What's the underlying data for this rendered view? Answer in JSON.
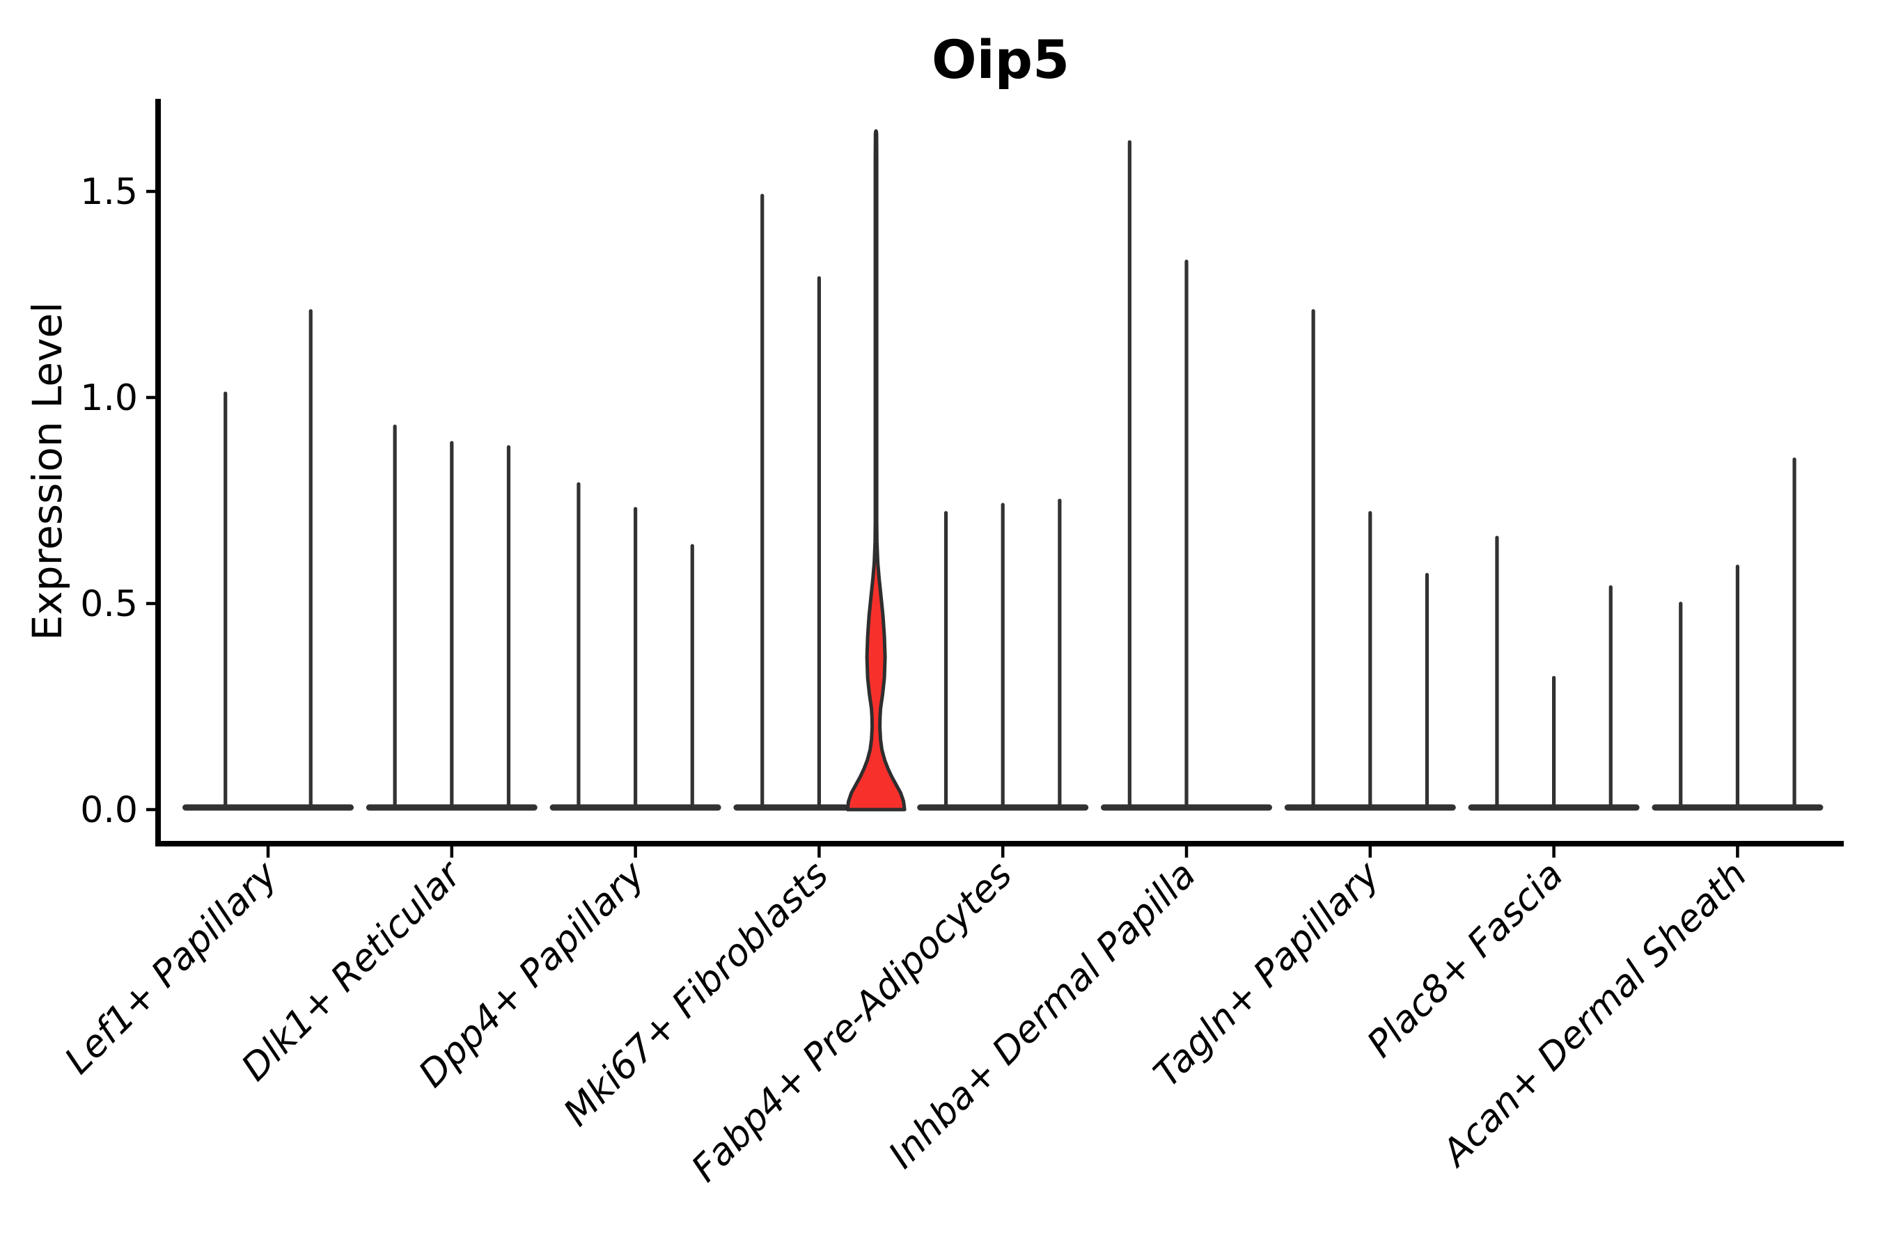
{
  "title": "Oip5",
  "ylabel": "Expression Level",
  "colors": {
    "background": "#ffffff",
    "axis": "#000000",
    "violin_line": "#323232",
    "highlight_fill": "#f8302c",
    "highlight_stroke": "#2e2e2e",
    "text": "#000000"
  },
  "chart_data": {
    "type": "violin",
    "title": "Oip5",
    "xlabel": "",
    "ylabel": "Expression Level",
    "ytick_labels": [
      "0.0",
      "0.5",
      "1.0",
      "1.5"
    ],
    "yticks": [
      0.0,
      0.5,
      1.0,
      1.5
    ],
    "ylim": [
      -0.085,
      1.725
    ],
    "grid": false,
    "legend": "none",
    "categories": [
      "Lef1+ Papillary",
      "Dlk1+ Reticular",
      "Dpp4+ Papillary",
      "Mki67+ Fibroblasts",
      "Fabp4+ Pre-Adipocytes",
      "Inhba+ Dermal Papilla",
      "Tagln+ Papillary",
      "Plac8+ Fascia",
      "Acan+ Dermal Sheath"
    ],
    "groups": [
      {
        "label": "Lef1+ Papillary",
        "violin_max_values": [
          1.01,
          1.21
        ]
      },
      {
        "label": "Dlk1+ Reticular",
        "violin_max_values": [
          0.93,
          0.89,
          0.88
        ]
      },
      {
        "label": "Dpp4+ Papillary",
        "violin_max_values": [
          0.79,
          0.73,
          0.64
        ]
      },
      {
        "label": "Mki67+ Fibroblasts",
        "violin_max_values": [
          1.49,
          1.29,
          1.64
        ]
      },
      {
        "label": "Fabp4+ Pre-Adipocytes",
        "violin_max_values": [
          0.72,
          0.74,
          0.75
        ]
      },
      {
        "label": "Inhba+ Dermal Papilla",
        "violin_max_values": [
          1.62,
          1.33,
          0.0
        ]
      },
      {
        "label": "Tagln+ Papillary",
        "violin_max_values": [
          1.21,
          0.72,
          0.57
        ]
      },
      {
        "label": "Plac8+ Fascia",
        "violin_max_values": [
          0.66,
          0.32,
          0.54
        ]
      },
      {
        "label": "Acan+ Dermal Sheath",
        "violin_max_values": [
          0.5,
          0.59,
          0.85
        ]
      }
    ],
    "highlight_violin": {
      "group_label": "Mki67+ Fibroblasts",
      "group_index": 3,
      "violin_index": 2,
      "max_value": 1.64,
      "description": "red-filled violin with wide base bell near 0, narrow neck, lens-shaped bulge around 0.37, thin tail to max",
      "width_profile": [
        [
          0.0,
          41.0
        ],
        [
          0.02,
          39.5
        ],
        [
          0.04,
          35.5
        ],
        [
          0.06,
          29.0
        ],
        [
          0.08,
          22.5
        ],
        [
          0.1,
          17.0
        ],
        [
          0.12,
          12.5
        ],
        [
          0.145,
          8.5
        ],
        [
          0.17,
          6.5
        ],
        [
          0.2,
          5.5
        ],
        [
          0.225,
          5.8
        ],
        [
          0.245,
          6.5
        ],
        [
          0.28,
          9.5
        ],
        [
          0.32,
          12.0
        ],
        [
          0.37,
          13.0
        ],
        [
          0.42,
          12.0
        ],
        [
          0.47,
          10.0
        ],
        [
          0.52,
          7.0
        ],
        [
          0.56,
          4.5
        ],
        [
          0.6,
          2.5
        ],
        [
          0.65,
          1.3
        ],
        [
          0.7,
          1.0
        ],
        [
          1.58,
          1.0
        ],
        [
          1.64,
          0.8
        ]
      ]
    }
  }
}
